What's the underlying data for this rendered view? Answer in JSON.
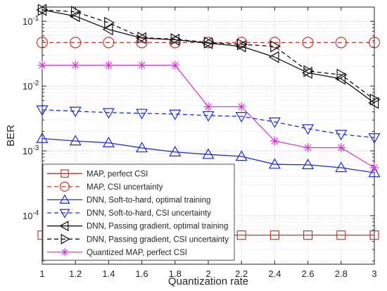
{
  "chart_data": {
    "type": "line",
    "xlabel": "Quantization rate",
    "ylabel": "BER",
    "xlim": [
      1,
      3
    ],
    "ylim_log10": [
      -4.75,
      -0.78
    ],
    "y_scale": "log",
    "grid": true,
    "legend_position": "bottom-left",
    "x_ticks": [
      "1",
      "1.2",
      "1.4",
      "1.6",
      "1.8",
      "2",
      "2.2",
      "2.4",
      "2.6",
      "2.8",
      "3"
    ],
    "y_tick_base": "10",
    "y_ticks": [
      {
        "exp": "-4",
        "value": 0.0001
      },
      {
        "exp": "-3",
        "value": 0.001
      },
      {
        "exp": "-2",
        "value": 0.01
      },
      {
        "exp": "-1",
        "value": 0.1
      }
    ],
    "x": [
      1,
      1.2,
      1.4,
      1.6,
      1.8,
      2,
      2.2,
      2.4,
      2.6,
      2.8,
      3
    ],
    "series": [
      {
        "name": "MAP, perfect CSI",
        "color": "#c0392b",
        "dash": "solid",
        "marker": "square",
        "values": [
          5e-05,
          5e-05,
          5e-05,
          5e-05,
          5e-05,
          5e-05,
          5e-05,
          5e-05,
          5e-05,
          5e-05,
          5e-05
        ]
      },
      {
        "name": "MAP, CSI uncertainty",
        "color": "#c0392b",
        "dash": "dashed",
        "marker": "circle",
        "values": [
          0.047,
          0.047,
          0.047,
          0.047,
          0.047,
          0.047,
          0.047,
          0.047,
          0.047,
          0.047,
          0.047
        ]
      },
      {
        "name": "DNN, Soft-to-hard, optimal training",
        "color": "#1f2bd6",
        "dash": "solid",
        "marker": "triangle-up",
        "values": [
          0.00155,
          0.00142,
          0.00133,
          0.00111,
          0.00096,
          0.00088,
          0.00082,
          0.00062,
          0.00061,
          0.00055,
          0.00046
        ]
      },
      {
        "name": "DNN, Soft-to-hard, CSI uncertainty",
        "color": "#1f2bd6",
        "dash": "dashed",
        "marker": "triangle-down",
        "values": [
          0.0043,
          0.0041,
          0.0039,
          0.0038,
          0.0037,
          0.0035,
          0.0034,
          0.0028,
          0.0022,
          0.0018,
          0.0016
        ]
      },
      {
        "name": "DNN, Passing gradient, optimal training",
        "color": "#111111",
        "dash": "solid",
        "marker": "triangle-left",
        "values": [
          0.15,
          0.12,
          0.075,
          0.055,
          0.052,
          0.046,
          0.041,
          0.028,
          0.016,
          0.013,
          0.0055
        ]
      },
      {
        "name": "DNN, Passing gradient, CSI uncertainty",
        "color": "#111111",
        "dash": "dashed",
        "marker": "triangle-right",
        "values": [
          0.15,
          0.14,
          0.095,
          0.056,
          0.053,
          0.047,
          0.044,
          0.041,
          0.017,
          0.015,
          0.0062
        ]
      },
      {
        "name": "Quantized MAP, perfect CSI",
        "color": "#d63bd6",
        "dash": "solid",
        "marker": "asterisk",
        "values": [
          0.021,
          0.021,
          0.021,
          0.021,
          0.021,
          0.0048,
          0.0048,
          0.00142,
          0.00112,
          0.00112,
          0.00055
        ]
      }
    ]
  }
}
